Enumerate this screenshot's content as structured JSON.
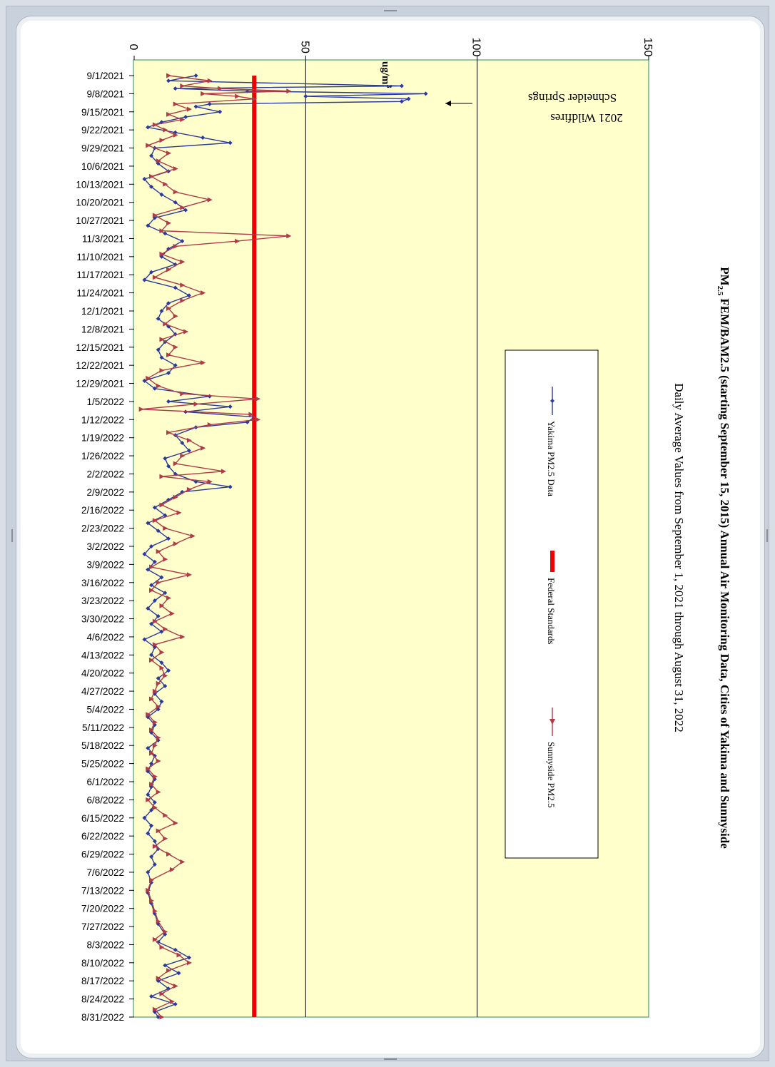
{
  "chart_data": {
    "type": "line",
    "title": "PM 2.5 FEM/BAM2.5 (starting September 15, 2015) Annual Air Monitoring Data, Cities of Yakima and Sunnyside",
    "title_parts": {
      "pm": "PM",
      "sub": "2.5",
      "rest": "FEM/BAM2.5 (starting September 15, 2015) Annual Air Monitoring Data, Cities of Yakima and Sunnyside"
    },
    "subtitle": "Daily Average Values from September 1, 2021 through August 31, 2022",
    "ylabel": "ug/m",
    "ylabel_sup": "3",
    "ylim": [
      0,
      150
    ],
    "yticks": [
      0,
      50,
      100,
      150
    ],
    "grid": "major y only",
    "legend_position": "right (rotated chart)",
    "x_start": "9/1/2021",
    "x_end": "8/31/2022",
    "xtick_labels": [
      "9/1/2021",
      "9/8/2021",
      "9/15/2021",
      "9/22/2021",
      "9/29/2021",
      "10/6/2021",
      "10/13/2021",
      "10/20/2021",
      "10/27/2021",
      "11/3/2021",
      "11/10/2021",
      "11/17/2021",
      "11/24/2021",
      "12/1/2021",
      "12/8/2021",
      "12/15/2021",
      "12/22/2021",
      "12/29/2021",
      "1/5/2022",
      "1/12/2022",
      "1/19/2022",
      "1/26/2022",
      "2/2/2022",
      "2/9/2022",
      "2/16/2022",
      "2/23/2022",
      "3/2/2022",
      "3/9/2022",
      "3/16/2022",
      "3/23/2022",
      "3/30/2022",
      "4/6/2022",
      "4/13/2022",
      "4/20/2022",
      "4/27/2022",
      "5/4/2022",
      "5/11/2022",
      "5/18/2022",
      "5/25/2022",
      "6/1/2022",
      "6/8/2022",
      "6/15/2022",
      "6/22/2022",
      "6/29/2022",
      "7/6/2022",
      "7/13/2022",
      "7/20/2022",
      "7/27/2022",
      "8/3/2022",
      "8/10/2022",
      "8/17/2022",
      "8/24/2022",
      "8/31/2022"
    ],
    "series": [
      {
        "name": "Yakima PM2.5 Data",
        "color": "#2b3a9c",
        "marker": "diamond",
        "points": [
          [
            "9/1/2021",
            18
          ],
          [
            "9/3/2021",
            10
          ],
          [
            "9/5/2021",
            78
          ],
          [
            "9/6/2021",
            12
          ],
          [
            "9/7/2021",
            33
          ],
          [
            "9/8/2021",
            85
          ],
          [
            "9/9/2021",
            50
          ],
          [
            "9/10/2021",
            80
          ],
          [
            "9/11/2021",
            78
          ],
          [
            "9/12/2021",
            22
          ],
          [
            "9/13/2021",
            18
          ],
          [
            "9/15/2021",
            25
          ],
          [
            "9/17/2021",
            15
          ],
          [
            "9/19/2021",
            8
          ],
          [
            "9/21/2021",
            4
          ],
          [
            "9/23/2021",
            12
          ],
          [
            "9/25/2021",
            20
          ],
          [
            "9/27/2021",
            28
          ],
          [
            "9/29/2021",
            6
          ],
          [
            "10/2/2021",
            5
          ],
          [
            "10/5/2021",
            7
          ],
          [
            "10/8/2021",
            10
          ],
          [
            "10/11/2021",
            3
          ],
          [
            "10/14/2021",
            5
          ],
          [
            "10/17/2021",
            8
          ],
          [
            "10/20/2021",
            12
          ],
          [
            "10/23/2021",
            15
          ],
          [
            "10/26/2021",
            6
          ],
          [
            "10/29/2021",
            4
          ],
          [
            "11/1/2021",
            9
          ],
          [
            "11/4/2021",
            14
          ],
          [
            "11/7/2021",
            10
          ],
          [
            "11/10/2021",
            8
          ],
          [
            "11/13/2021",
            12
          ],
          [
            "11/16/2021",
            5
          ],
          [
            "11/19/2021",
            3
          ],
          [
            "11/22/2021",
            12
          ],
          [
            "11/25/2021",
            16
          ],
          [
            "11/28/2021",
            10
          ],
          [
            "12/1/2021",
            8
          ],
          [
            "12/4/2021",
            7
          ],
          [
            "12/7/2021",
            10
          ],
          [
            "12/10/2021",
            12
          ],
          [
            "12/13/2021",
            9
          ],
          [
            "12/16/2021",
            7
          ],
          [
            "12/19/2021",
            8
          ],
          [
            "12/22/2021",
            12
          ],
          [
            "12/25/2021",
            10
          ],
          [
            "12/28/2021",
            3
          ],
          [
            "12/31/2021",
            6
          ],
          [
            "1/3/2022",
            22
          ],
          [
            "1/5/2022",
            10
          ],
          [
            "1/7/2022",
            28
          ],
          [
            "1/9/2022",
            15
          ],
          [
            "1/11/2022",
            35
          ],
          [
            "1/13/2022",
            33
          ],
          [
            "1/15/2022",
            18
          ],
          [
            "1/18/2022",
            12
          ],
          [
            "1/21/2022",
            14
          ],
          [
            "1/24/2022",
            16
          ],
          [
            "1/27/2022",
            9
          ],
          [
            "1/30/2022",
            10
          ],
          [
            "2/2/2022",
            12
          ],
          [
            "2/5/2022",
            18
          ],
          [
            "2/7/2022",
            28
          ],
          [
            "2/9/2022",
            14
          ],
          [
            "2/12/2022",
            10
          ],
          [
            "2/15/2022",
            6
          ],
          [
            "2/18/2022",
            9
          ],
          [
            "2/21/2022",
            4
          ],
          [
            "2/24/2022",
            7
          ],
          [
            "2/27/2022",
            10
          ],
          [
            "3/2/2022",
            5
          ],
          [
            "3/5/2022",
            3
          ],
          [
            "3/8/2022",
            6
          ],
          [
            "3/11/2022",
            4
          ],
          [
            "3/14/2022",
            8
          ],
          [
            "3/17/2022",
            5
          ],
          [
            "3/20/2022",
            9
          ],
          [
            "3/23/2022",
            6
          ],
          [
            "3/26/2022",
            4
          ],
          [
            "3/29/2022",
            7
          ],
          [
            "4/1/2022",
            5
          ],
          [
            "4/4/2022",
            8
          ],
          [
            "4/7/2022",
            3
          ],
          [
            "4/10/2022",
            6
          ],
          [
            "4/13/2022",
            5
          ],
          [
            "4/16/2022",
            8
          ],
          [
            "4/19/2022",
            10
          ],
          [
            "4/22/2022",
            7
          ],
          [
            "4/25/2022",
            9
          ],
          [
            "4/28/2022",
            6
          ],
          [
            "5/1/2022",
            8
          ],
          [
            "5/4/2022",
            7
          ],
          [
            "5/7/2022",
            4
          ],
          [
            "5/10/2022",
            6
          ],
          [
            "5/13/2022",
            5
          ],
          [
            "5/16/2022",
            7
          ],
          [
            "5/19/2022",
            4
          ],
          [
            "5/22/2022",
            6
          ],
          [
            "5/25/2022",
            5
          ],
          [
            "5/28/2022",
            4
          ],
          [
            "5/31/2022",
            6
          ],
          [
            "6/3/2022",
            5
          ],
          [
            "6/6/2022",
            4
          ],
          [
            "6/9/2022",
            6
          ],
          [
            "6/12/2022",
            5
          ],
          [
            "6/15/2022",
            3
          ],
          [
            "6/18/2022",
            5
          ],
          [
            "6/21/2022",
            4
          ],
          [
            "6/24/2022",
            6
          ],
          [
            "6/27/2022",
            7
          ],
          [
            "6/30/2022",
            5
          ],
          [
            "7/3/2022",
            6
          ],
          [
            "7/6/2022",
            4
          ],
          [
            "7/10/2022",
            5
          ],
          [
            "7/14/2022",
            4
          ],
          [
            "7/18/2022",
            5
          ],
          [
            "7/22/2022",
            6
          ],
          [
            "7/26/2022",
            7
          ],
          [
            "7/30/2022",
            9
          ],
          [
            "8/2/2022",
            7
          ],
          [
            "8/5/2022",
            12
          ],
          [
            "8/8/2022",
            16
          ],
          [
            "8/11/2022",
            9
          ],
          [
            "8/14/2022",
            13
          ],
          [
            "8/17/2022",
            7
          ],
          [
            "8/20/2022",
            10
          ],
          [
            "8/23/2022",
            5
          ],
          [
            "8/26/2022",
            12
          ],
          [
            "8/29/2022",
            6
          ],
          [
            "8/31/2022",
            7
          ]
        ]
      },
      {
        "name": "Federal Standards",
        "color": "#ee0000",
        "marker": "none",
        "constant": 35
      },
      {
        "name": "Sunnyside PM2.5",
        "color": "#b03a48",
        "marker": "triangle",
        "points": [
          [
            "9/1/2021",
            10
          ],
          [
            "9/3/2021",
            22
          ],
          [
            "9/5/2021",
            14
          ],
          [
            "9/6/2021",
            25
          ],
          [
            "9/7/2021",
            45
          ],
          [
            "9/8/2021",
            20
          ],
          [
            "9/9/2021",
            30
          ],
          [
            "9/10/2021",
            35
          ],
          [
            "9/12/2021",
            12
          ],
          [
            "9/14/2021",
            16
          ],
          [
            "9/16/2021",
            10
          ],
          [
            "9/18/2021",
            14
          ],
          [
            "9/20/2021",
            6
          ],
          [
            "9/22/2021",
            9
          ],
          [
            "9/24/2021",
            12
          ],
          [
            "9/26/2021",
            8
          ],
          [
            "9/28/2021",
            4
          ],
          [
            "10/1/2021",
            10
          ],
          [
            "10/4/2021",
            7
          ],
          [
            "10/7/2021",
            12
          ],
          [
            "10/10/2021",
            5
          ],
          [
            "10/13/2021",
            9
          ],
          [
            "10/16/2021",
            12
          ],
          [
            "10/19/2021",
            22
          ],
          [
            "10/22/2021",
            14
          ],
          [
            "10/25/2021",
            6
          ],
          [
            "10/28/2021",
            10
          ],
          [
            "10/31/2021",
            8
          ],
          [
            "11/2/2021",
            45
          ],
          [
            "11/4/2021",
            30
          ],
          [
            "11/6/2021",
            12
          ],
          [
            "11/9/2021",
            8
          ],
          [
            "11/12/2021",
            14
          ],
          [
            "11/15/2021",
            10
          ],
          [
            "11/18/2021",
            6
          ],
          [
            "11/21/2021",
            14
          ],
          [
            "11/24/2021",
            20
          ],
          [
            "11/27/2021",
            14
          ],
          [
            "11/30/2021",
            10
          ],
          [
            "12/3/2021",
            12
          ],
          [
            "12/6/2021",
            9
          ],
          [
            "12/9/2021",
            15
          ],
          [
            "12/12/2021",
            8
          ],
          [
            "12/15/2021",
            12
          ],
          [
            "12/18/2021",
            10
          ],
          [
            "12/21/2021",
            20
          ],
          [
            "12/24/2021",
            8
          ],
          [
            "12/27/2021",
            4
          ],
          [
            "12/30/2021",
            7
          ],
          [
            "1/2/2022",
            14
          ],
          [
            "1/4/2022",
            36
          ],
          [
            "1/6/2022",
            18
          ],
          [
            "1/8/2022",
            2
          ],
          [
            "1/10/2022",
            34
          ],
          [
            "1/12/2022",
            36
          ],
          [
            "1/14/2022",
            22
          ],
          [
            "1/17/2022",
            10
          ],
          [
            "1/20/2022",
            16
          ],
          [
            "1/23/2022",
            20
          ],
          [
            "1/26/2022",
            14
          ],
          [
            "1/29/2022",
            12
          ],
          [
            "2/1/2022",
            26
          ],
          [
            "2/3/2022",
            8
          ],
          [
            "2/5/2022",
            22
          ],
          [
            "2/8/2022",
            16
          ],
          [
            "2/11/2022",
            12
          ],
          [
            "2/14/2022",
            8
          ],
          [
            "2/17/2022",
            13
          ],
          [
            "2/20/2022",
            6
          ],
          [
            "2/23/2022",
            9
          ],
          [
            "2/26/2022",
            17
          ],
          [
            "3/1/2022",
            12
          ],
          [
            "3/4/2022",
            7
          ],
          [
            "3/7/2022",
            9
          ],
          [
            "3/10/2022",
            5
          ],
          [
            "3/13/2022",
            16
          ],
          [
            "3/16/2022",
            7
          ],
          [
            "3/19/2022",
            5
          ],
          [
            "3/22/2022",
            10
          ],
          [
            "3/25/2022",
            8
          ],
          [
            "3/28/2022",
            11
          ],
          [
            "3/31/2022",
            6
          ],
          [
            "4/3/2022",
            9
          ],
          [
            "4/6/2022",
            14
          ],
          [
            "4/9/2022",
            6
          ],
          [
            "4/12/2022",
            8
          ],
          [
            "4/15/2022",
            5
          ],
          [
            "4/18/2022",
            8
          ],
          [
            "4/21/2022",
            9
          ],
          [
            "4/24/2022",
            7
          ],
          [
            "4/27/2022",
            6
          ],
          [
            "4/30/2022",
            5
          ],
          [
            "5/3/2022",
            7
          ],
          [
            "5/6/2022",
            4
          ],
          [
            "5/9/2022",
            6
          ],
          [
            "5/12/2022",
            5
          ],
          [
            "5/15/2022",
            7
          ],
          [
            "5/18/2022",
            6
          ],
          [
            "5/21/2022",
            5
          ],
          [
            "5/24/2022",
            7
          ],
          [
            "5/27/2022",
            4
          ],
          [
            "5/30/2022",
            6
          ],
          [
            "6/2/2022",
            5
          ],
          [
            "6/5/2022",
            7
          ],
          [
            "6/8/2022",
            4
          ],
          [
            "6/11/2022",
            6
          ],
          [
            "6/14/2022",
            9
          ],
          [
            "6/17/2022",
            12
          ],
          [
            "6/20/2022",
            7
          ],
          [
            "6/23/2022",
            9
          ],
          [
            "6/26/2022",
            6
          ],
          [
            "6/29/2022",
            10
          ],
          [
            "7/2/2022",
            14
          ],
          [
            "7/5/2022",
            11
          ],
          [
            "7/9/2022",
            5
          ],
          [
            "7/13/2022",
            4
          ],
          [
            "7/17/2022",
            5
          ],
          [
            "7/21/2022",
            6
          ],
          [
            "7/25/2022",
            7
          ],
          [
            "7/29/2022",
            9
          ],
          [
            "8/1/2022",
            6
          ],
          [
            "8/4/2022",
            8
          ],
          [
            "8/7/2022",
            13
          ],
          [
            "8/10/2022",
            16
          ],
          [
            "8/13/2022",
            10
          ],
          [
            "8/16/2022",
            7
          ],
          [
            "8/19/2022",
            12
          ],
          [
            "8/22/2022",
            8
          ],
          [
            "8/25/2022",
            11
          ],
          [
            "8/28/2022",
            6
          ],
          [
            "8/31/2022",
            8
          ]
        ]
      }
    ],
    "annotation": {
      "text": [
        "2021 Wildfires",
        "Schneider Springs"
      ],
      "points_to": "9/8/2021",
      "value": 100
    }
  }
}
